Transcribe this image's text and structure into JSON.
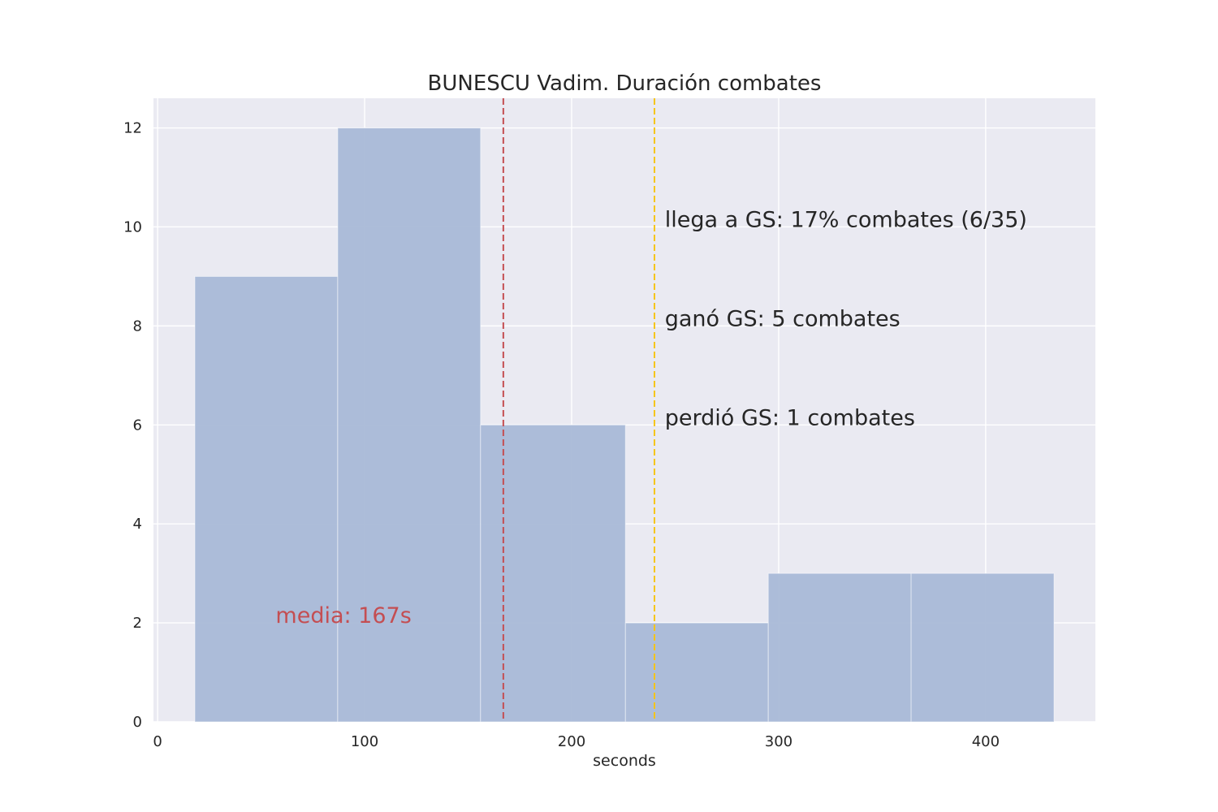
{
  "chart_data": {
    "type": "bar",
    "title": "BUNESCU Vadim. Duración combates",
    "xlabel": "seconds",
    "ylabel": "",
    "xlim": [
      -2,
      453
    ],
    "ylim": [
      0,
      12.6
    ],
    "xticks": [
      0,
      100,
      200,
      300,
      400
    ],
    "yticks": [
      0,
      2,
      4,
      6,
      8,
      10,
      12
    ],
    "grid": true,
    "bins": [
      {
        "start": 18,
        "end": 87,
        "count": 9
      },
      {
        "start": 87,
        "end": 156,
        "count": 12
      },
      {
        "start": 156,
        "end": 226,
        "count": 6
      },
      {
        "start": 226,
        "end": 295,
        "count": 2
      },
      {
        "start": 295,
        "end": 364,
        "count": 3
      },
      {
        "start": 364,
        "end": 433,
        "count": 3
      }
    ],
    "bar_color": "#a9b9d7",
    "background_color": "#eaeaf2",
    "vlines": [
      {
        "x": 167,
        "color": "#c44e52",
        "style": "dashed"
      },
      {
        "x": 240,
        "color": "#f5c518",
        "style": "dashed"
      }
    ],
    "annotations": [
      {
        "text": "media: 167s",
        "x": 57,
        "y": 2.0,
        "color": "#c44e52"
      },
      {
        "text": "llega a GS: 17% combates (6/35)",
        "x": 245,
        "y": 10.0,
        "color": "#262626"
      },
      {
        "text": "ganó GS: 5 combates",
        "x": 245,
        "y": 8.0,
        "color": "#262626"
      },
      {
        "text": "perdió GS: 1 combates",
        "x": 245,
        "y": 6.0,
        "color": "#262626"
      }
    ]
  }
}
